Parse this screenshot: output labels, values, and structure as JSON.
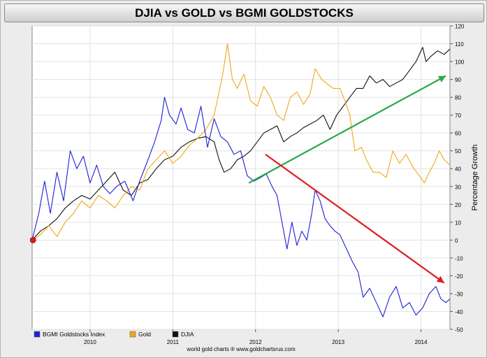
{
  "title": "DJIA vs GOLD vs BGMI GOLDSTOCKS",
  "footer": "world gold charts ® www.goldchartsrus.com",
  "chart_data": {
    "type": "line",
    "title": "DJIA vs GOLD vs BGMI GOLDSTOCKS",
    "xlabel": "",
    "ylabel": "Percentage Growth",
    "xlim": [
      2009.3,
      2014.35
    ],
    "ylim": [
      -50,
      120
    ],
    "x_ticks": [
      "2010",
      "2011",
      "2012",
      "2013",
      "2014"
    ],
    "x_tick_values": [
      2010.0,
      2011.0,
      2012.0,
      2013.0,
      2014.0
    ],
    "y_ticks": [
      120,
      110,
      100,
      90,
      80,
      70,
      60,
      50,
      40,
      30,
      20,
      10,
      0,
      -10,
      -20,
      -30,
      -40,
      -50
    ],
    "grid": true,
    "legend_position": "bottom-left",
    "series": [
      {
        "name": "BGMI Goldstocks Index",
        "color": "#1f1fd6",
        "points": [
          [
            2009.3,
            0
          ],
          [
            2009.38,
            15
          ],
          [
            2009.45,
            33
          ],
          [
            2009.52,
            15
          ],
          [
            2009.6,
            38
          ],
          [
            2009.68,
            22
          ],
          [
            2009.76,
            50
          ],
          [
            2009.84,
            40
          ],
          [
            2009.92,
            47
          ],
          [
            2010.0,
            32
          ],
          [
            2010.08,
            42
          ],
          [
            2010.16,
            30
          ],
          [
            2010.24,
            26
          ],
          [
            2010.32,
            30
          ],
          [
            2010.42,
            33
          ],
          [
            2010.52,
            22
          ],
          [
            2010.6,
            33
          ],
          [
            2010.7,
            45
          ],
          [
            2010.78,
            55
          ],
          [
            2010.86,
            67
          ],
          [
            2010.9,
            80
          ],
          [
            2010.96,
            70
          ],
          [
            2011.04,
            65
          ],
          [
            2011.1,
            74
          ],
          [
            2011.18,
            62
          ],
          [
            2011.26,
            60
          ],
          [
            2011.34,
            75
          ],
          [
            2011.42,
            52
          ],
          [
            2011.5,
            68
          ],
          [
            2011.58,
            58
          ],
          [
            2011.66,
            55
          ],
          [
            2011.74,
            48
          ],
          [
            2011.82,
            50
          ],
          [
            2011.9,
            36
          ],
          [
            2011.98,
            33
          ],
          [
            2012.06,
            35
          ],
          [
            2012.13,
            37
          ],
          [
            2012.2,
            30
          ],
          [
            2012.26,
            25
          ],
          [
            2012.32,
            10
          ],
          [
            2012.38,
            -5
          ],
          [
            2012.44,
            10
          ],
          [
            2012.5,
            -3
          ],
          [
            2012.56,
            5
          ],
          [
            2012.62,
            0
          ],
          [
            2012.68,
            15
          ],
          [
            2012.72,
            28
          ],
          [
            2012.78,
            22
          ],
          [
            2012.84,
            12
          ],
          [
            2012.9,
            8
          ],
          [
            2012.96,
            5
          ],
          [
            2013.02,
            3
          ],
          [
            2013.1,
            -5
          ],
          [
            2013.17,
            -12
          ],
          [
            2013.24,
            -18
          ],
          [
            2013.3,
            -32
          ],
          [
            2013.38,
            -27
          ],
          [
            2013.46,
            -35
          ],
          [
            2013.54,
            -43
          ],
          [
            2013.62,
            -32
          ],
          [
            2013.7,
            -26
          ],
          [
            2013.78,
            -38
          ],
          [
            2013.86,
            -35
          ],
          [
            2013.94,
            -42
          ],
          [
            2014.02,
            -38
          ],
          [
            2014.1,
            -30
          ],
          [
            2014.18,
            -26
          ],
          [
            2014.24,
            -33
          ],
          [
            2014.3,
            -35
          ],
          [
            2014.35,
            -33
          ]
        ]
      },
      {
        "name": "Gold",
        "color": "#f0a818",
        "points": [
          [
            2009.3,
            0
          ],
          [
            2009.4,
            3
          ],
          [
            2009.5,
            8
          ],
          [
            2009.6,
            2
          ],
          [
            2009.7,
            10
          ],
          [
            2009.8,
            15
          ],
          [
            2009.9,
            22
          ],
          [
            2010.0,
            18
          ],
          [
            2010.1,
            25
          ],
          [
            2010.2,
            22
          ],
          [
            2010.3,
            18
          ],
          [
            2010.4,
            25
          ],
          [
            2010.5,
            30
          ],
          [
            2010.6,
            28
          ],
          [
            2010.7,
            40
          ],
          [
            2010.8,
            45
          ],
          [
            2010.9,
            50
          ],
          [
            2011.0,
            43
          ],
          [
            2011.1,
            47
          ],
          [
            2011.2,
            53
          ],
          [
            2011.3,
            57
          ],
          [
            2011.4,
            62
          ],
          [
            2011.5,
            70
          ],
          [
            2011.6,
            92
          ],
          [
            2011.66,
            110
          ],
          [
            2011.72,
            90
          ],
          [
            2011.78,
            85
          ],
          [
            2011.86,
            93
          ],
          [
            2011.94,
            78
          ],
          [
            2012.02,
            75
          ],
          [
            2012.1,
            86
          ],
          [
            2012.18,
            80
          ],
          [
            2012.26,
            70
          ],
          [
            2012.34,
            67
          ],
          [
            2012.42,
            80
          ],
          [
            2012.5,
            83
          ],
          [
            2012.58,
            76
          ],
          [
            2012.66,
            82
          ],
          [
            2012.72,
            96
          ],
          [
            2012.8,
            90
          ],
          [
            2012.88,
            87
          ],
          [
            2012.94,
            85
          ],
          [
            2013.02,
            85
          ],
          [
            2013.08,
            78
          ],
          [
            2013.14,
            70
          ],
          [
            2013.2,
            50
          ],
          [
            2013.28,
            52
          ],
          [
            2013.34,
            45
          ],
          [
            2013.42,
            38
          ],
          [
            2013.5,
            38
          ],
          [
            2013.58,
            35
          ],
          [
            2013.66,
            50
          ],
          [
            2013.74,
            43
          ],
          [
            2013.82,
            48
          ],
          [
            2013.9,
            41
          ],
          [
            2013.98,
            36
          ],
          [
            2014.04,
            32
          ],
          [
            2014.1,
            38
          ],
          [
            2014.16,
            43
          ],
          [
            2014.22,
            50
          ],
          [
            2014.28,
            45
          ],
          [
            2014.35,
            42
          ]
        ]
      },
      {
        "name": "DJIA",
        "color": "#111111",
        "points": [
          [
            2009.3,
            0
          ],
          [
            2009.4,
            5
          ],
          [
            2009.5,
            8
          ],
          [
            2009.6,
            12
          ],
          [
            2009.7,
            18
          ],
          [
            2009.8,
            22
          ],
          [
            2009.9,
            25
          ],
          [
            2010.0,
            23
          ],
          [
            2010.1,
            28
          ],
          [
            2010.2,
            33
          ],
          [
            2010.3,
            38
          ],
          [
            2010.4,
            28
          ],
          [
            2010.5,
            25
          ],
          [
            2010.6,
            32
          ],
          [
            2010.7,
            34
          ],
          [
            2010.8,
            40
          ],
          [
            2010.9,
            45
          ],
          [
            2011.0,
            47
          ],
          [
            2011.1,
            52
          ],
          [
            2011.2,
            55
          ],
          [
            2011.3,
            57
          ],
          [
            2011.4,
            58
          ],
          [
            2011.5,
            55
          ],
          [
            2011.56,
            45
          ],
          [
            2011.62,
            38
          ],
          [
            2011.7,
            40
          ],
          [
            2011.78,
            45
          ],
          [
            2011.86,
            47
          ],
          [
            2011.94,
            50
          ],
          [
            2012.02,
            55
          ],
          [
            2012.1,
            60
          ],
          [
            2012.18,
            62
          ],
          [
            2012.26,
            64
          ],
          [
            2012.34,
            55
          ],
          [
            2012.42,
            58
          ],
          [
            2012.5,
            60
          ],
          [
            2012.58,
            63
          ],
          [
            2012.66,
            65
          ],
          [
            2012.74,
            67
          ],
          [
            2012.82,
            70
          ],
          [
            2012.9,
            62
          ],
          [
            2012.98,
            70
          ],
          [
            2013.06,
            75
          ],
          [
            2013.14,
            80
          ],
          [
            2013.22,
            85
          ],
          [
            2013.3,
            85
          ],
          [
            2013.38,
            92
          ],
          [
            2013.46,
            88
          ],
          [
            2013.54,
            90
          ],
          [
            2013.62,
            86
          ],
          [
            2013.7,
            88
          ],
          [
            2013.78,
            90
          ],
          [
            2013.86,
            95
          ],
          [
            2013.94,
            100
          ],
          [
            2014.02,
            108
          ],
          [
            2014.06,
            100
          ],
          [
            2014.12,
            103
          ],
          [
            2014.2,
            106
          ],
          [
            2014.28,
            104
          ],
          [
            2014.35,
            107
          ]
        ]
      }
    ],
    "annotations": [
      {
        "type": "arrow",
        "color": "#2aa84a",
        "from": [
          2011.92,
          32
        ],
        "to": [
          2014.3,
          92
        ]
      },
      {
        "type": "arrow",
        "color": "#e01b1b",
        "from": [
          2012.12,
          48
        ],
        "to": [
          2014.28,
          -24
        ]
      },
      {
        "type": "marker",
        "color": "#e01b1b",
        "at": [
          2009.31,
          0
        ]
      }
    ]
  }
}
